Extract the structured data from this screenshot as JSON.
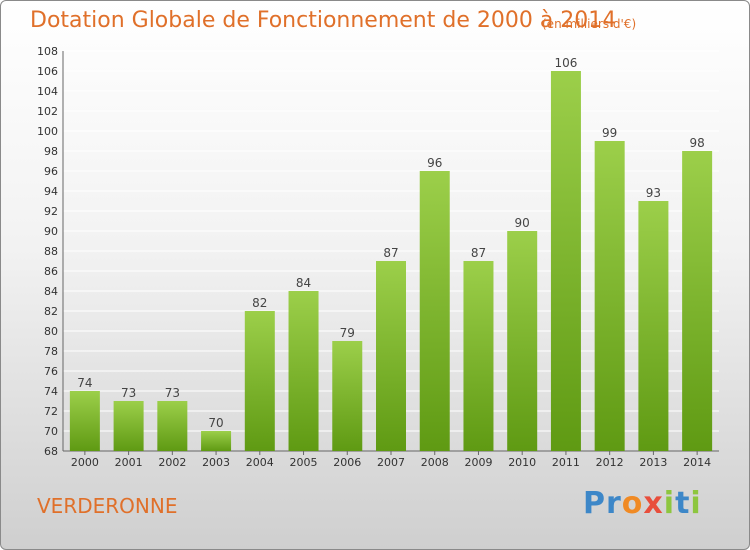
{
  "header": {
    "title": "Dotation Globale de Fonctionnement de 2000 à 2014",
    "unit": "(en milliers d'€)"
  },
  "footer": {
    "commune": "VERDERONNE",
    "logo_text": "Proxiti"
  },
  "colors": {
    "bar_light": "#9ccf4a",
    "bar_dark": "#5f9a13",
    "text_accent": "#e0702a",
    "grid": "#ffffff"
  },
  "chart_data": {
    "type": "bar",
    "title": "Dotation Globale de Fonctionnement de 2000 à 2014",
    "subtitle": "(en milliers d'€)",
    "xlabel": "",
    "ylabel": "",
    "categories": [
      "2000",
      "2001",
      "2002",
      "2003",
      "2004",
      "2005",
      "2006",
      "2007",
      "2008",
      "2009",
      "2010",
      "2011",
      "2012",
      "2013",
      "2014"
    ],
    "values": [
      74,
      73,
      73,
      70,
      82,
      84,
      79,
      87,
      96,
      87,
      90,
      106,
      99,
      93,
      98
    ],
    "ylim": [
      68,
      108
    ],
    "yticks": [
      68,
      70,
      72,
      74,
      76,
      78,
      80,
      82,
      84,
      86,
      88,
      90,
      92,
      94,
      96,
      98,
      100,
      102,
      104,
      106,
      108
    ],
    "grid": true,
    "data_labels": true
  }
}
